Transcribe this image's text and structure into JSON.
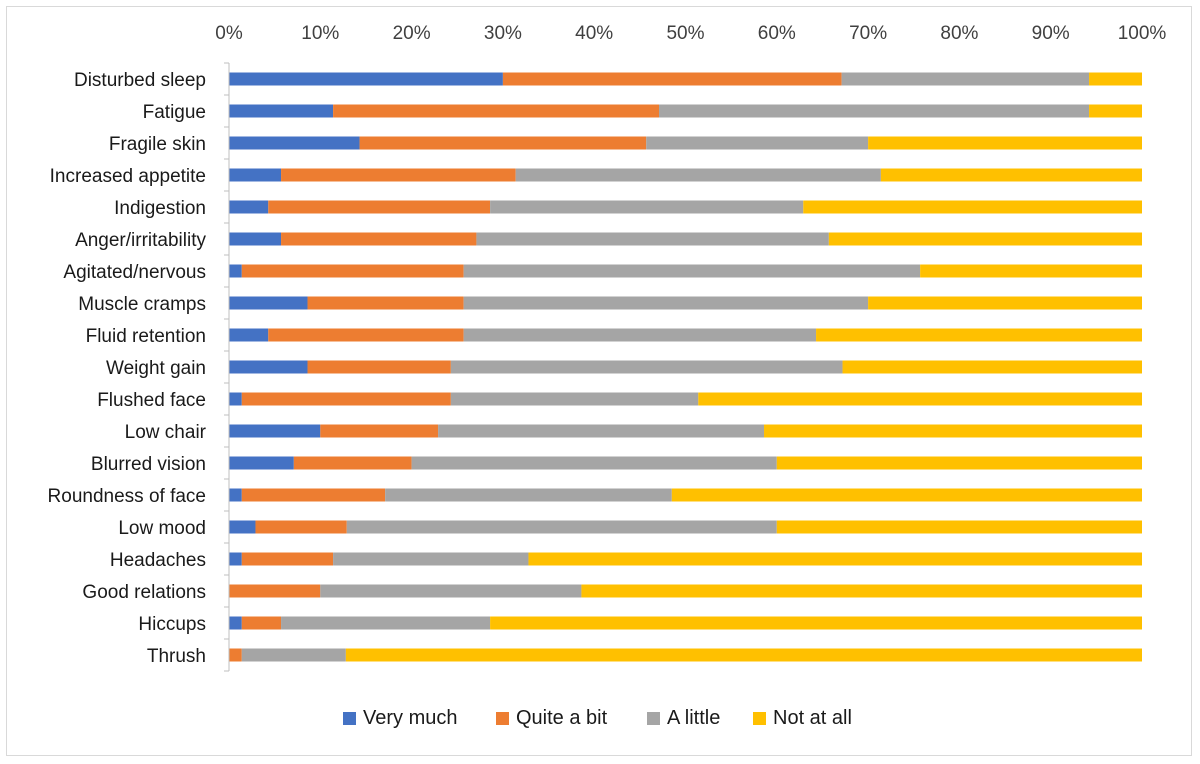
{
  "chart_data": {
    "type": "bar",
    "orientation": "horizontal",
    "stacked": "percent",
    "title": "",
    "xlabel": "",
    "ylabel": "",
    "xlim": [
      0,
      100
    ],
    "x_ticks": [
      "0%",
      "10%",
      "20%",
      "30%",
      "40%",
      "50%",
      "60%",
      "70%",
      "80%",
      "90%",
      "100%"
    ],
    "grid": false,
    "legend_position": "bottom",
    "categories": [
      "Disturbed sleep",
      "Fatigue",
      "Fragile skin",
      "Increased appetite",
      "Indigestion",
      "Anger/irritability",
      "Agitated/nervous",
      "Muscle cramps",
      "Fluid retention",
      "Weight gain",
      "Flushed face",
      "Low chair",
      "Blurred vision",
      "Roundness of face",
      "Low mood",
      "Headaches",
      "Good relations",
      "Hiccups",
      "Thrush"
    ],
    "series": [
      {
        "name": "Very much",
        "color": "#4472c4",
        "values": [
          30.0,
          11.4,
          14.3,
          5.7,
          4.3,
          5.7,
          1.4,
          8.6,
          4.3,
          8.6,
          1.4,
          10.0,
          7.1,
          1.4,
          2.9,
          1.4,
          0.0,
          1.4,
          0.0
        ]
      },
      {
        "name": "Quite a bit",
        "color": "#ed7d31",
        "values": [
          37.1,
          35.7,
          31.4,
          25.7,
          24.3,
          21.4,
          24.3,
          17.1,
          21.4,
          15.7,
          22.9,
          12.9,
          12.9,
          15.7,
          10.0,
          10.0,
          10.0,
          4.3,
          1.4
        ]
      },
      {
        "name": "A little",
        "color": "#a5a5a5",
        "values": [
          27.1,
          47.1,
          24.3,
          40.0,
          34.3,
          38.6,
          50.0,
          44.3,
          38.6,
          42.9,
          27.1,
          35.7,
          40.0,
          31.4,
          47.1,
          21.4,
          28.6,
          22.9,
          11.4
        ]
      },
      {
        "name": "Not at all",
        "color": "#ffc000",
        "values": [
          5.8,
          5.8,
          30.0,
          28.6,
          37.1,
          34.3,
          24.3,
          30.0,
          35.7,
          32.8,
          48.6,
          41.4,
          40.0,
          51.5,
          40.0,
          67.2,
          61.4,
          71.4,
          87.2
        ]
      }
    ]
  }
}
